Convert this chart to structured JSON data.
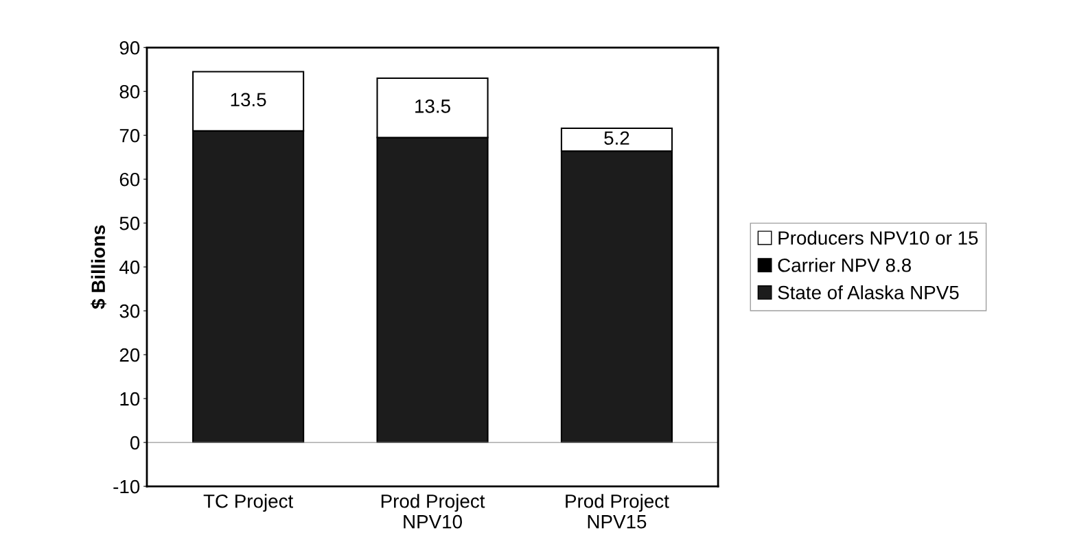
{
  "chart_data": {
    "type": "bar",
    "stacked": true,
    "ylabel": "$ Billions",
    "categories": [
      "TC Project",
      "Prod Project\nNPV10",
      "Prod Project\nNPV15"
    ],
    "series": [
      {
        "name": "State of Alaska NPV5",
        "color": "#1c1c1c",
        "values": [
          71,
          69.5,
          66.4
        ]
      },
      {
        "name": "Carrier NPV 8.8",
        "color": "#000000",
        "values": [
          null,
          null,
          null
        ]
      },
      {
        "name": "Producers NPV10 or 15",
        "color": "#ffffff",
        "values": [
          13.5,
          13.5,
          5.2
        ],
        "value_labels": [
          "13.5",
          "13.5",
          "5.2"
        ]
      }
    ],
    "ylim": [
      -10,
      90
    ],
    "yticks": [
      -10,
      0,
      10,
      20,
      30,
      40,
      50,
      60,
      70,
      80,
      90
    ],
    "grid": false,
    "ref_lines": [
      {
        "axis": "y",
        "value": 0,
        "color": "#999999"
      }
    ],
    "legend": "right"
  }
}
